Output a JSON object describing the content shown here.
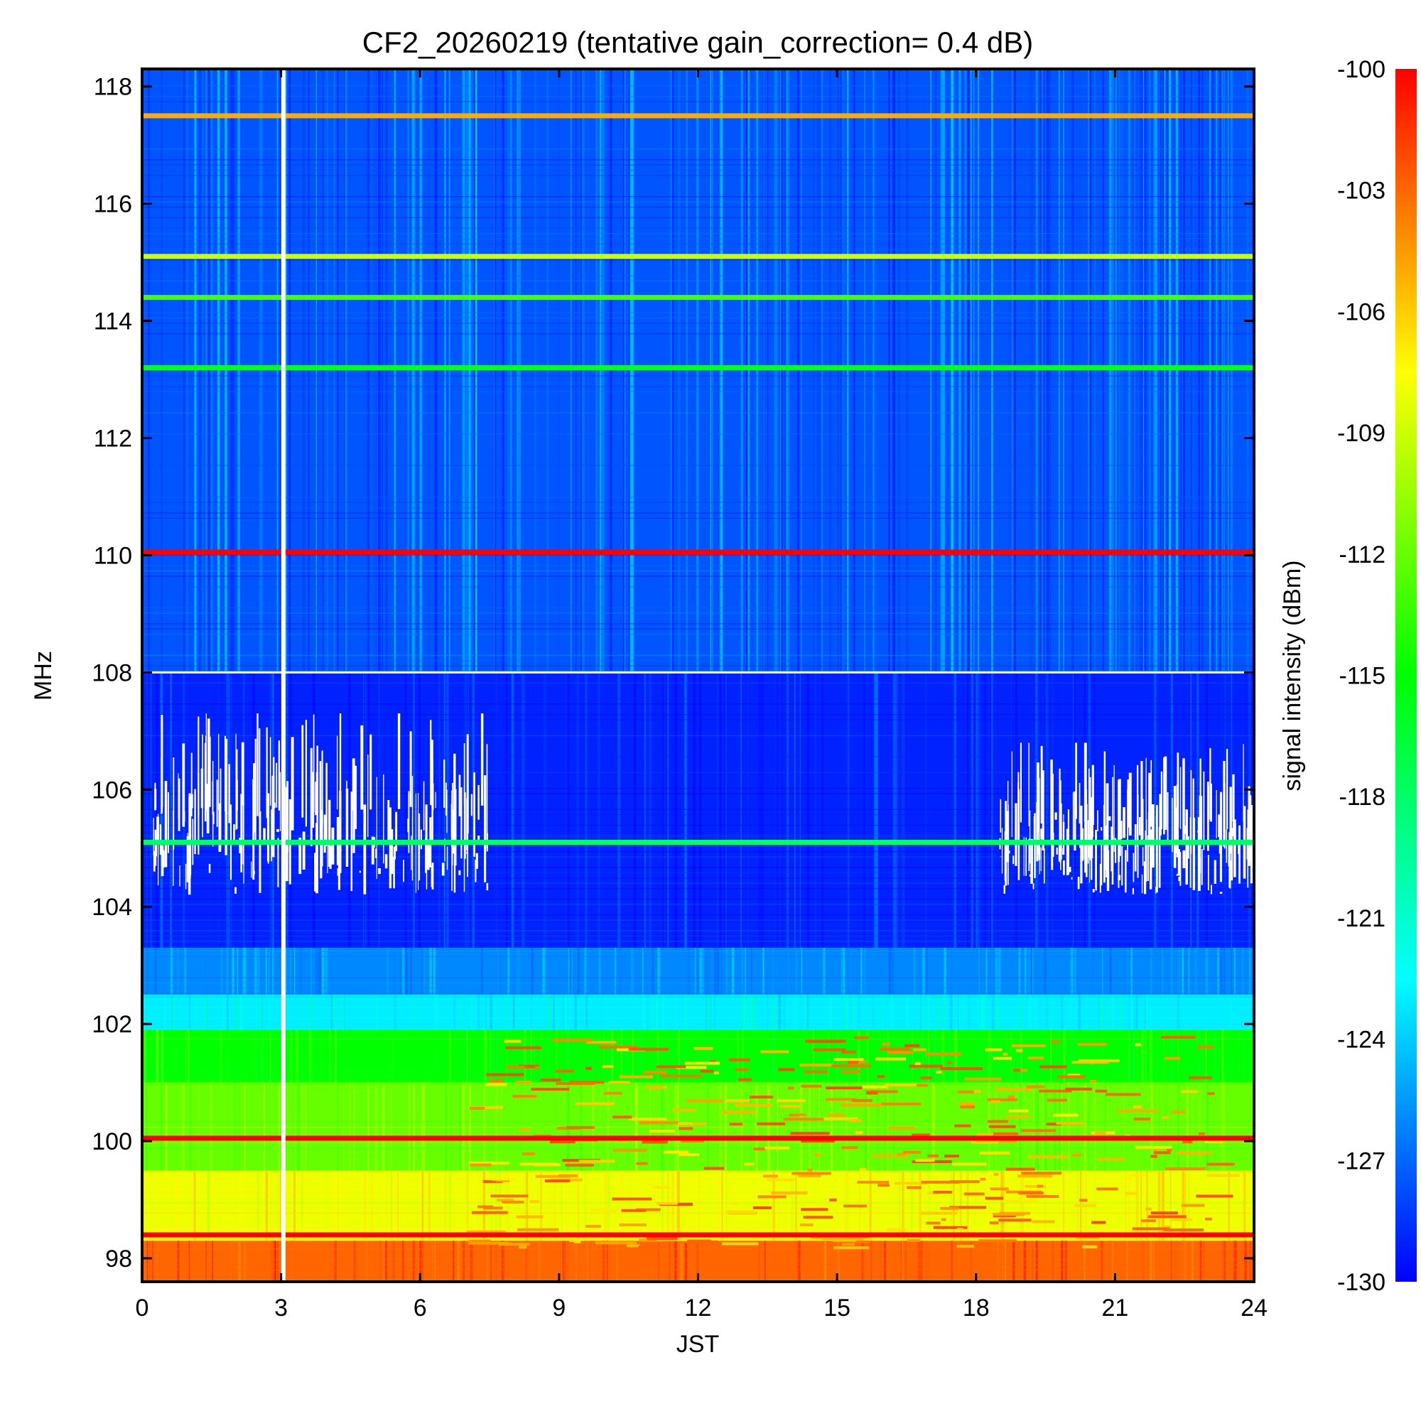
{
  "chart_data": {
    "type": "heatmap",
    "title": "CF2_20260219 (tentative gain_correction=  0.4 dB)",
    "xlabel": "JST",
    "ylabel": "MHz",
    "colorbar_label": "signal intensity (dBm)",
    "xlim": [
      0,
      24
    ],
    "ylim": [
      97.6,
      118.3
    ],
    "clim": [
      -130,
      -100
    ],
    "x_ticks": [
      "0",
      "3",
      "6",
      "9",
      "12",
      "15",
      "18",
      "21",
      "24"
    ],
    "y_ticks": [
      "98",
      "100",
      "102",
      "104",
      "106",
      "108",
      "110",
      "112",
      "114",
      "116",
      "118"
    ],
    "colorbar_ticks": [
      "-100",
      "-103",
      "-106",
      "-109",
      "-112",
      "-115",
      "-118",
      "-121",
      "-124",
      "-127",
      "-130"
    ],
    "colormap": [
      "#0000ff",
      "#0080ff",
      "#00ffff",
      "#00ff80",
      "#00ff00",
      "#80ff00",
      "#ffff00",
      "#ff8000",
      "#ff0000"
    ],
    "missing_time_jst": 3.05,
    "band_levels": [
      {
        "f0": 97.6,
        "f1": 98.3,
        "level": -103
      },
      {
        "f0": 98.3,
        "f1": 99.5,
        "level": -108
      },
      {
        "f0": 99.5,
        "f1": 101.0,
        "level": -112
      },
      {
        "f0": 101.0,
        "f1": 101.9,
        "level": -115
      },
      {
        "f0": 101.9,
        "f1": 102.5,
        "level": -123
      },
      {
        "f0": 102.5,
        "f1": 103.3,
        "level": -126
      },
      {
        "f0": 103.3,
        "f1": 108.0,
        "level": -129
      },
      {
        "f0": 108.0,
        "f1": 118.3,
        "level": -127.5
      }
    ],
    "strong_lines": [
      {
        "freq": 117.5,
        "level": -105,
        "note": "yellow-red"
      },
      {
        "freq": 115.1,
        "level": -109
      },
      {
        "freq": 114.4,
        "level": -113
      },
      {
        "freq": 113.2,
        "level": -116
      },
      {
        "freq": 110.05,
        "level": -100
      },
      {
        "freq": 105.1,
        "level": -118
      },
      {
        "freq": 100.05,
        "level": -100
      },
      {
        "freq": 98.4,
        "level": -100
      }
    ],
    "gap_regions": [
      {
        "f0": 104.2,
        "f1": 107.3,
        "t0": 0.2,
        "t1": 7.5
      },
      {
        "f0": 104.2,
        "f1": 106.8,
        "t0": 18.5,
        "t1": 24.0
      }
    ]
  }
}
